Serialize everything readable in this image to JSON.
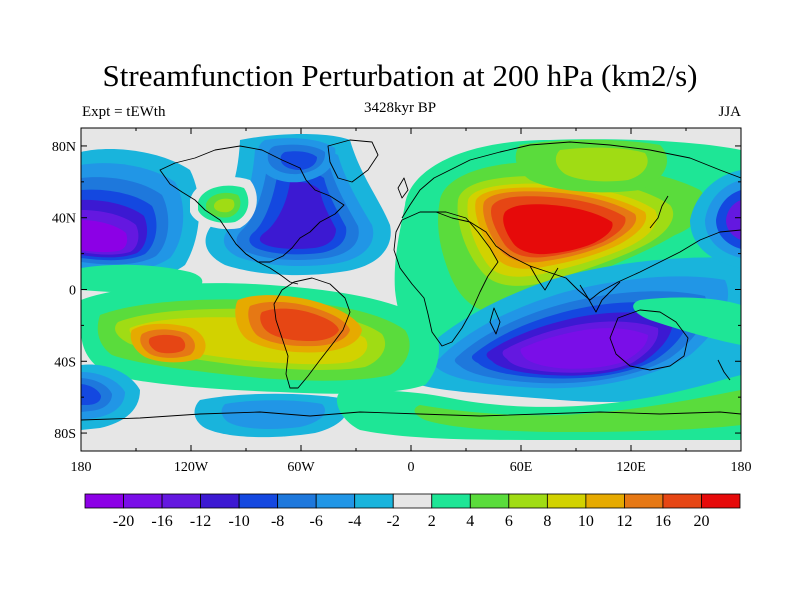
{
  "title": "Streamfunction Perturbation at 200 hPa (km2/s)",
  "experiment_label": "Expt = tEWth",
  "period_label": "3428kyr BP",
  "season_label": "JJA",
  "chart_data": {
    "type": "heatmap",
    "variable": "Streamfunction Perturbation",
    "level": "200 hPa",
    "units": "km2/s",
    "x_range": [
      -180,
      180
    ],
    "y_range": [
      -90,
      90
    ],
    "x_tick_labels": [
      "180",
      "120W",
      "60W",
      "0",
      "60E",
      "120E",
      "180"
    ],
    "y_tick_labels": [
      "80N",
      "40N",
      "0",
      "40S",
      "80S"
    ],
    "colorbar": {
      "levels": [
        "-20",
        "-16",
        "-12",
        "-10",
        "-8",
        "-6",
        "-4",
        "-2",
        "2",
        "4",
        "6",
        "8",
        "10",
        "12",
        "16",
        "20"
      ],
      "colors": [
        "#8c00e6",
        "#7a0ee8",
        "#6418e0",
        "#3c19d2",
        "#1448e0",
        "#1e78dc",
        "#2196e6",
        "#19b4dc",
        "#e6e6e6",
        "#1ee696",
        "#5adc3c",
        "#a0dc14",
        "#d2d200",
        "#e6aa00",
        "#e67814",
        "#e64614",
        "#e60a0a"
      ]
    },
    "features": [
      {
        "name": "central-asia-high",
        "lon": 68,
        "lat": 33,
        "value": 20
      },
      {
        "name": "south-america-high",
        "lon": -54,
        "lat": -24,
        "value": 16
      },
      {
        "name": "south-pacific-high",
        "lon": -134,
        "lat": -30,
        "value": 16
      },
      {
        "name": "indian-ocean-low",
        "lon": 95,
        "lat": -25,
        "value": -20
      },
      {
        "name": "north-pacific-low",
        "lon": -160,
        "lat": 32,
        "value": -20
      },
      {
        "name": "north-atlantic-low",
        "lon": -60,
        "lat": 27,
        "value": -12
      },
      {
        "name": "hudson-low",
        "lon": -82,
        "lat": 55,
        "value": -10
      },
      {
        "name": "west-pacific-low",
        "lon": 175,
        "lat": 40,
        "value": -16
      },
      {
        "name": "north-america-high",
        "lon": -109,
        "lat": 42,
        "value": 8
      },
      {
        "name": "siberia-high",
        "lon": 90,
        "lat": 62,
        "value": 6
      },
      {
        "name": "southern-ocean-low",
        "lon": -42,
        "lat": -60,
        "value": -6
      },
      {
        "name": "south-pacific-low",
        "lon": -175,
        "lat": -55,
        "value": -12
      }
    ]
  }
}
